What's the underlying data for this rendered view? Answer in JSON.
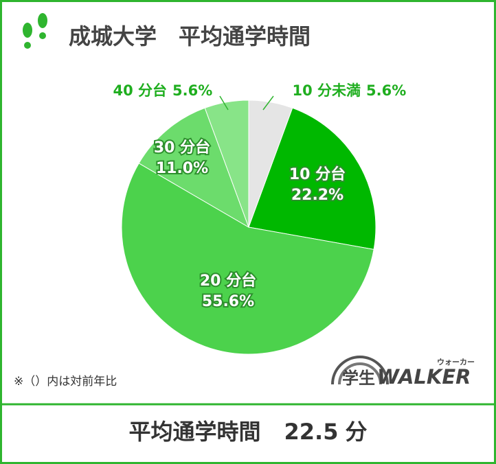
{
  "chart_data": {
    "type": "pie",
    "title": "成城大学　平均通学時間",
    "categories": [
      "10 分未満",
      "10 分台",
      "20 分台",
      "30 分台",
      "40 分台"
    ],
    "values": [
      5.6,
      22.2,
      55.6,
      11.0,
      5.6
    ],
    "value_labels": [
      "5.6%",
      "22.2%",
      "55.6%",
      "11.0%",
      "5.6%"
    ],
    "colors": [
      "#e5e5e5",
      "#00b800",
      "#4cd24c",
      "#6cdc6c",
      "#88e488"
    ],
    "note": "※（）内は対前年比",
    "logo": {
      "prefix": "学生",
      "brand": "WALKER",
      "reading": "ウォーカー"
    },
    "summary_label": "平均通学時間",
    "summary_value": 22.5,
    "summary_unit": "分"
  }
}
